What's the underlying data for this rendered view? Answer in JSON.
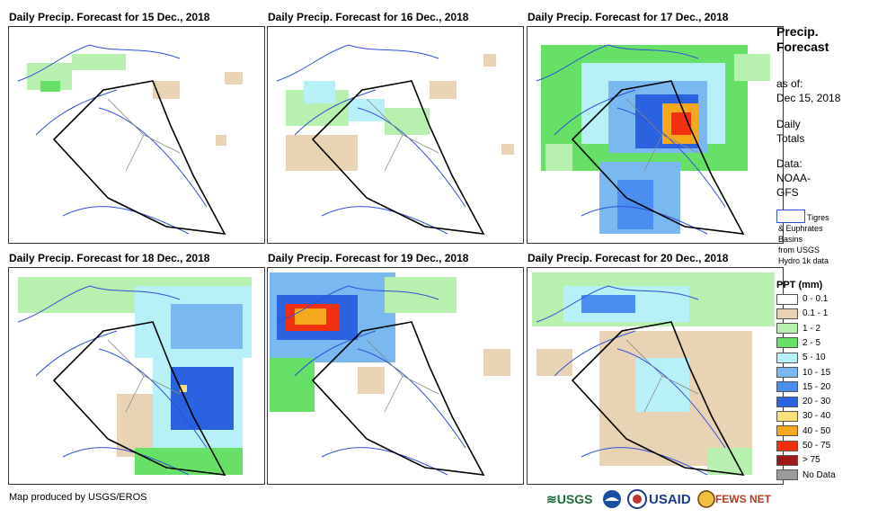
{
  "panels": [
    {
      "title": "Daily Precip. Forecast for 15 Dec., 2018"
    },
    {
      "title": "Daily Precip. Forecast for 16 Dec., 2018"
    },
    {
      "title": "Daily Precip. Forecast for 17 Dec., 2018"
    },
    {
      "title": "Daily Precip. Forecast for 18 Dec., 2018"
    },
    {
      "title": "Daily Precip. Forecast for 19 Dec., 2018"
    },
    {
      "title": "Daily Precip. Forecast for 20 Dec., 2018"
    }
  ],
  "side": {
    "title_line1": "Precip.",
    "title_line2": "Forecast",
    "asof_label": "as of:",
    "asof_date": "Dec 15, 2018",
    "totals_line1": "Daily",
    "totals_line2": "Totals",
    "data_label": "Data:",
    "data_source1": "NOAA-",
    "data_source2": "GFS",
    "basin_line1": "Tigres",
    "basin_line2": "& Euphrates",
    "basin_line3": "Basins",
    "basin_line4": "from USGS",
    "basin_line5": "Hydro 1k data"
  },
  "legend": {
    "title": "PPT (mm)",
    "items": [
      {
        "label": "0 - 0.1",
        "color": "#ffffff"
      },
      {
        "label": "0.1 - 1",
        "color": "#e8d4b4"
      },
      {
        "label": "1 - 2",
        "color": "#b8f0b0"
      },
      {
        "label": "2 - 5",
        "color": "#66e066"
      },
      {
        "label": "5 - 10",
        "color": "#b8f0f8"
      },
      {
        "label": "10 - 15",
        "color": "#7ab8f0"
      },
      {
        "label": "15 - 20",
        "color": "#4a8ef0"
      },
      {
        "label": "20 - 30",
        "color": "#2a62e0"
      },
      {
        "label": "30 - 40",
        "color": "#f8e07a"
      },
      {
        "label": "40 - 50",
        "color": "#f5a81c"
      },
      {
        "label": "50 - 75",
        "color": "#f03010"
      },
      {
        "label": "> 75",
        "color": "#a01818"
      },
      {
        "label": "No Data",
        "color": "#9a9a9a"
      }
    ]
  },
  "footer": {
    "credit": "Map produced by USGS/EROS",
    "logo_usgs": "≋USGS",
    "logo_usaid": "USAID",
    "logo_fews": "FEWS NET"
  }
}
